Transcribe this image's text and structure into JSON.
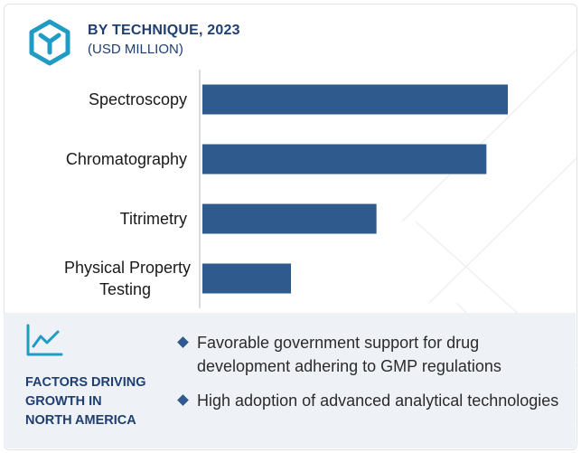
{
  "header": {
    "title": "BY TECHNIQUE, 2023",
    "subtitle": "(USD MILLION)",
    "logo_icon": "hexagon-y-logo-icon"
  },
  "chart_data": {
    "type": "bar",
    "orientation": "horizontal",
    "categories": [
      "Spectroscopy",
      "Chromatography",
      "Titrimetry",
      "Physical Property Testing"
    ],
    "values": [
      100,
      93,
      57,
      29
    ],
    "xlabel": "",
    "ylabel": "",
    "xlim": [
      0,
      100
    ],
    "grid": false,
    "bar_color": "#2f5a8e"
  },
  "factors": {
    "icon": "trend-line-icon",
    "title_lines": [
      "FACTORS DRIVING",
      "GROWTH IN",
      "NORTH AMERICA"
    ],
    "items": [
      {
        "text": "Favorable government support for drug development adhering to GMP regulations"
      },
      {
        "text": "High adoption of advanced analytical technologies"
      }
    ]
  },
  "colors": {
    "accent": "#2f5a8e",
    "title": "#1f3f70",
    "icon": "#1f9bc4",
    "panel_bg": "#eef2f6"
  }
}
